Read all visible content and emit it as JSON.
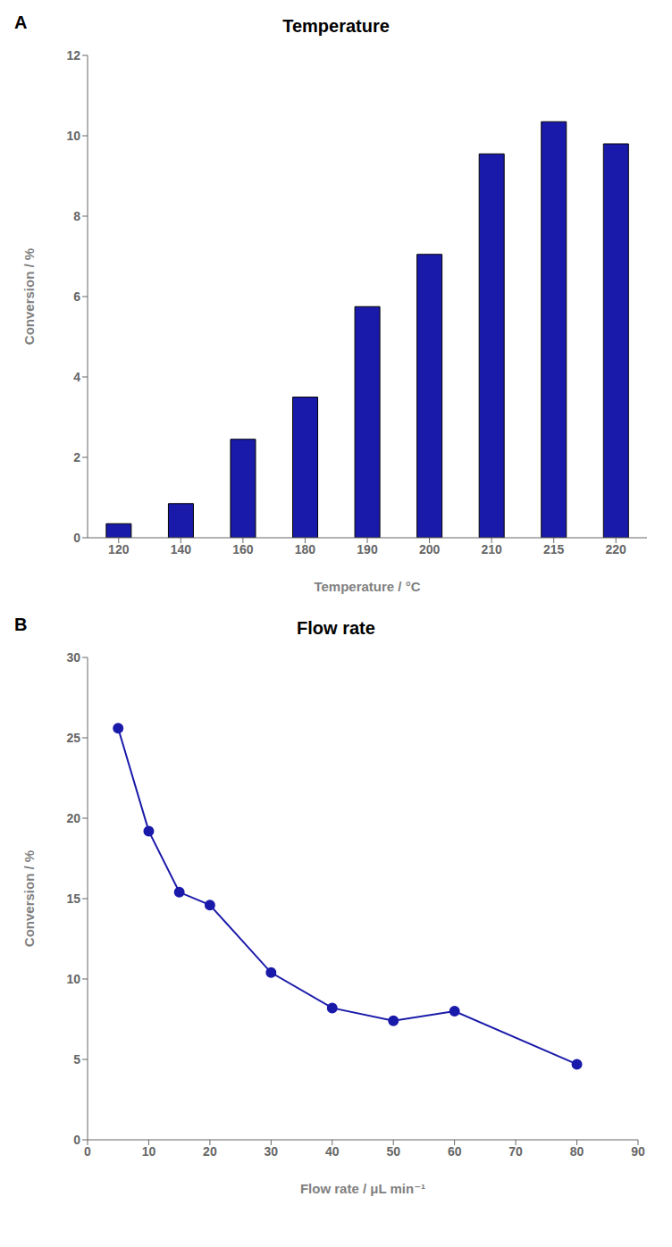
{
  "chart_data": [
    {
      "type": "bar",
      "title": "Temperature",
      "annotations": [
        "A"
      ],
      "xlabel": "Temperature / °C",
      "ylabel": "Conversion / %",
      "categories": [
        "120",
        "140",
        "160",
        "180",
        "190",
        "200",
        "210",
        "215",
        "220"
      ],
      "values": [
        0.35,
        0.85,
        2.45,
        3.5,
        5.75,
        7.05,
        9.55,
        10.35,
        9.8
      ],
      "color": "#1a1aaa",
      "ylim": [
        0,
        12
      ],
      "yticks": [
        0,
        2,
        4,
        6,
        8,
        10,
        12
      ],
      "grid": false
    },
    {
      "type": "line",
      "title": "Flow rate",
      "annotations": [
        "B"
      ],
      "xlabel": "Flow rate / μL min⁻¹",
      "ylabel": "Conversion / %",
      "x": [
        5,
        10,
        15,
        20,
        30,
        40,
        50,
        60,
        80
      ],
      "values": [
        25.6,
        19.2,
        15.4,
        14.6,
        10.4,
        8.2,
        7.4,
        8.0,
        4.7
      ],
      "color": "#1a1aaa",
      "marker": "circle",
      "xlim": [
        0,
        90
      ],
      "xticks": [
        0,
        10,
        20,
        30,
        40,
        50,
        60,
        70,
        80,
        90
      ],
      "ylim": [
        0,
        30
      ],
      "yticks": [
        0,
        5,
        10,
        15,
        20,
        25,
        30
      ],
      "grid": false
    }
  ]
}
